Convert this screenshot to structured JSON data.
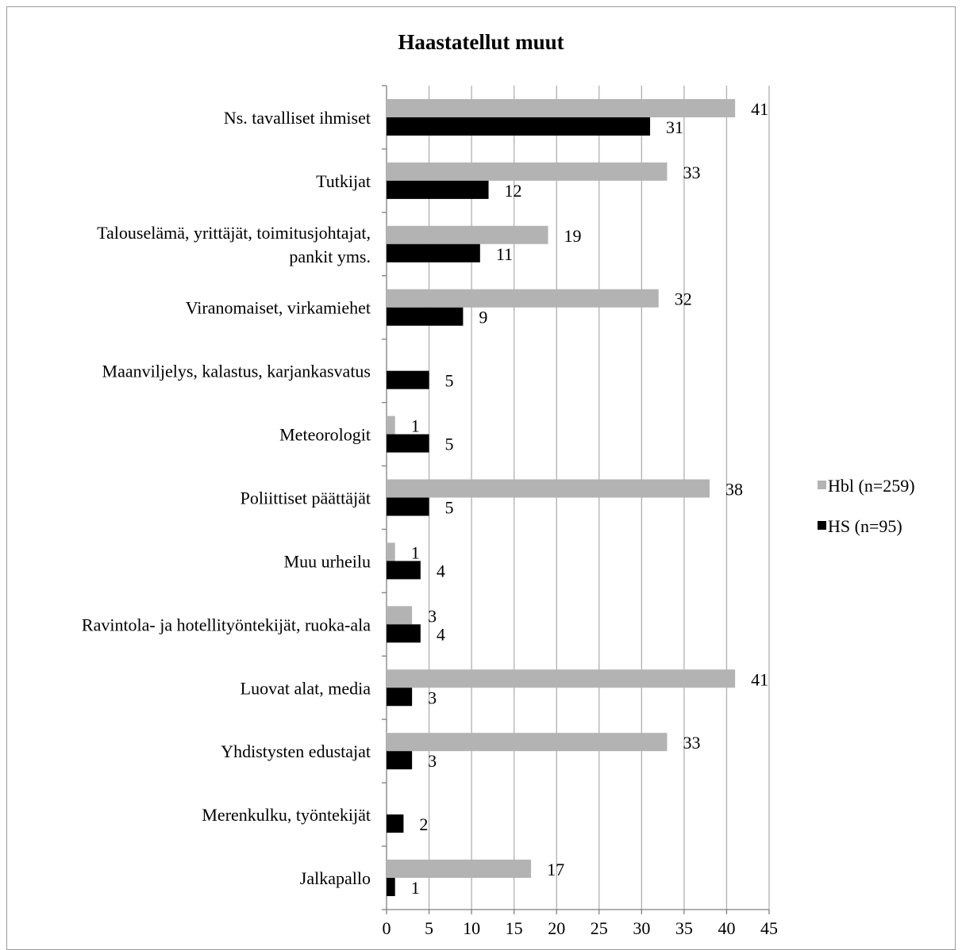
{
  "chart_data": {
    "type": "bar",
    "orientation": "horizontal",
    "title": "Haastatellut muut",
    "xlabel": "",
    "ylabel": "",
    "xlim": [
      0,
      45
    ],
    "xticks": [
      "0",
      "5",
      "10",
      "15",
      "20",
      "25",
      "30",
      "35",
      "40",
      "45"
    ],
    "grid": true,
    "legend_position": "right",
    "categories": [
      "Ns. tavalliset ihmiset",
      "Tutkijat",
      [
        "Talouselämä, yrittäjät, toimitusjohtajat,",
        "pankit yms."
      ],
      "Viranomaiset, virkamiehet",
      "Maanviljelys, kalastus, karjankasvatus",
      "Meteorologit",
      "Poliittiset päättäjät",
      "Muu urheilu",
      "Ravintola- ja hotellityöntekijät, ruoka-ala",
      "Luovat alat, media",
      "Yhdistysten edustajat",
      "Merenkulku, työntekijät",
      "Jalkapallo"
    ],
    "series": [
      {
        "name": "Hbl (n=259)",
        "color": "#b3b3b3",
        "values": [
          41,
          33,
          19,
          32,
          null,
          1,
          38,
          1,
          3,
          41,
          33,
          null,
          17
        ],
        "labels": [
          "41",
          "33",
          "19",
          "32",
          "",
          "1",
          "38",
          "1",
          "3",
          "41",
          "33",
          "",
          "17"
        ]
      },
      {
        "name": "HS (n=95)",
        "color": "#000000",
        "values": [
          31,
          12,
          11,
          9,
          5,
          5,
          5,
          4,
          4,
          3,
          3,
          2,
          1
        ],
        "labels": [
          "31",
          "12",
          "11",
          "9",
          "5",
          "5",
          "5",
          "4",
          "4",
          "3",
          "3",
          "2",
          "1"
        ]
      }
    ]
  }
}
